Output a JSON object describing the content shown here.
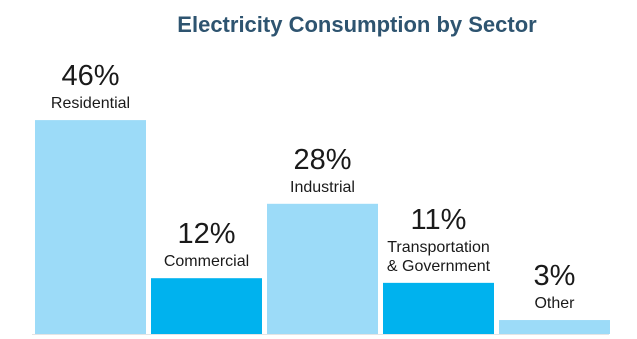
{
  "chart_data": {
    "type": "bar",
    "title": "Electricity Consumption by Sector",
    "categories": [
      "Residential",
      "Commercial",
      "Industrial",
      "Transportation & Government",
      "Other"
    ],
    "category_lines": [
      [
        "Residential"
      ],
      [
        "Commercial"
      ],
      [
        "Industrial"
      ],
      [
        "Transportation",
        "& Government"
      ],
      [
        "Other"
      ]
    ],
    "values": [
      46,
      12,
      28,
      11,
      3
    ],
    "value_labels": [
      "46%",
      "12%",
      "28%",
      "11%",
      "3%"
    ],
    "bar_colors": [
      "#9cdbf8",
      "#00b2ee",
      "#9cdbf8",
      "#00b2ee",
      "#9cdbf8"
    ],
    "title_color": "#2e5470",
    "xlabel": "",
    "ylabel": "",
    "unit": "%",
    "grid": false,
    "legend": "none"
  }
}
